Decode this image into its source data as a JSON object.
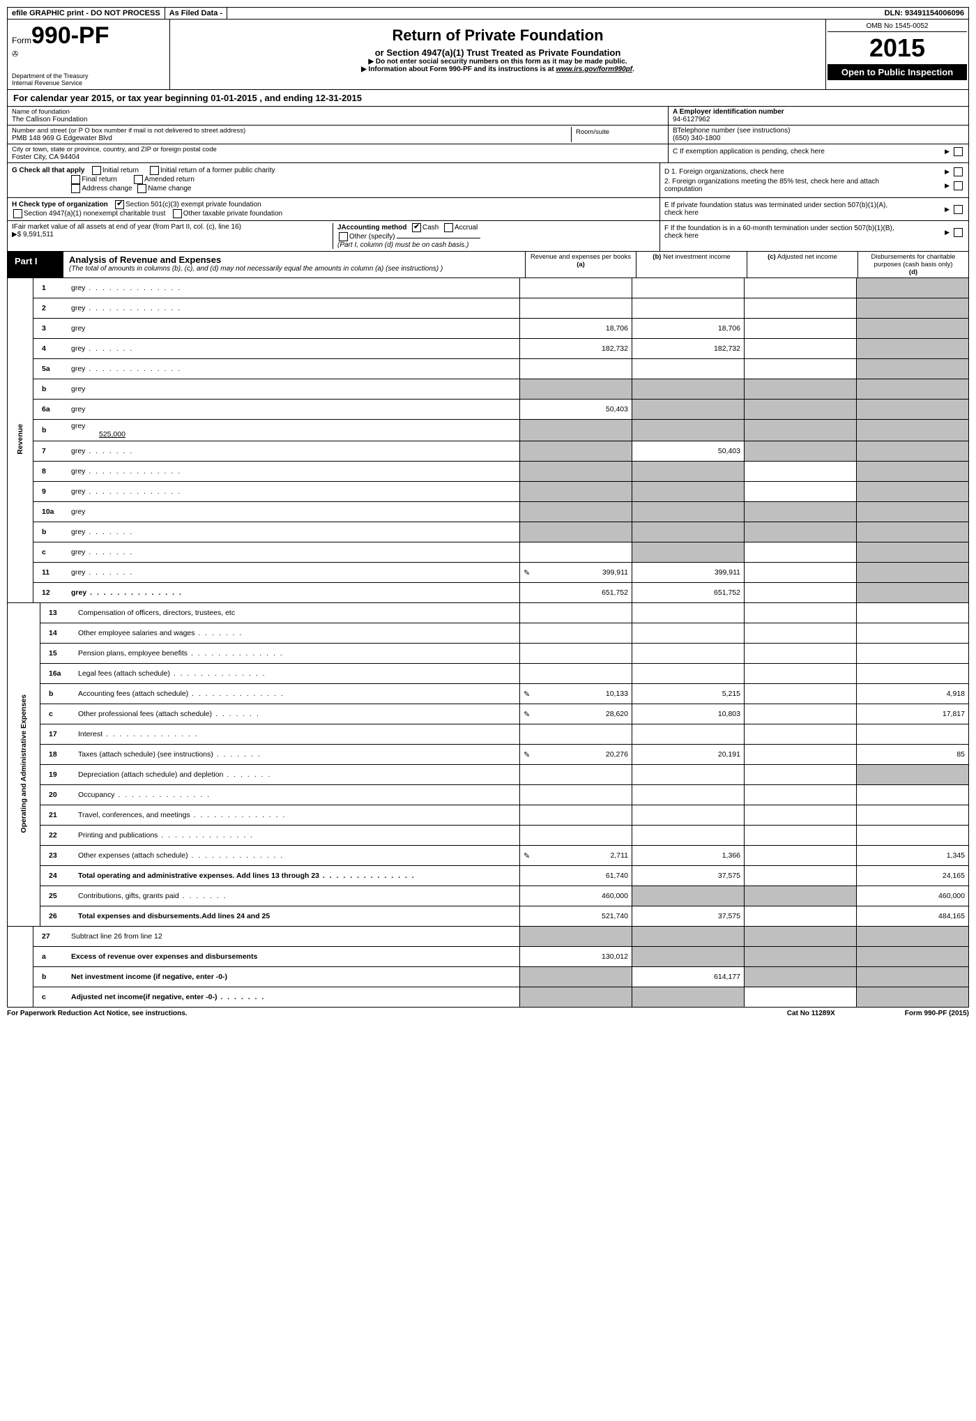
{
  "topbar": {
    "efile": "efile GRAPHIC print - DO NOT PROCESS",
    "asfiled": "As Filed Data -",
    "dln": "DLN: 93491154006096"
  },
  "header": {
    "form_prefix": "Form",
    "form_no": "990-PF",
    "dept1": "Department of the Treasury",
    "dept2": "Internal Revenue Service",
    "title": "Return of Private Foundation",
    "subtitle": "or Section 4947(a)(1) Trust Treated as Private Foundation",
    "note1": "▶ Do not enter social security numbers on this form as it may be made public.",
    "note2_a": "▶ Information about Form 990-PF and its instructions is at ",
    "note2_link": "www.irs.gov/form990pf",
    "note2_b": ".",
    "omb": "OMB No 1545-0052",
    "year": "2015",
    "open": "Open to Public Inspection"
  },
  "calyear": "For calendar year 2015, or tax year beginning 01-01-2015           , and ending 12-31-2015",
  "info": {
    "name_label": "Name of foundation",
    "name": "The Callison Foundation",
    "addr_label": "Number and street (or P O  box number if mail is not delivered to street address)",
    "room_label": "Room/suite",
    "addr": "PMB 148 969 G Edgewater Blvd",
    "city_label": "City or town, state or province, country, and ZIP or foreign postal code",
    "city": "Foster City, CA  94404",
    "a_label": "A Employer identification number",
    "a_val": "94-6127962",
    "b_label": "BTelephone number (see instructions)",
    "b_val": "(650) 340-1800",
    "c_label": "C  If exemption application is pending, check here"
  },
  "g": {
    "label": "G Check all that apply",
    "o1": "Initial return",
    "o2": "Initial return of a former public charity",
    "o3": "Final return",
    "o4": "Amended return",
    "o5": "Address change",
    "o6": "Name change"
  },
  "h": {
    "label": "H Check type of organization",
    "o1": "Section 501(c)(3) exempt private foundation",
    "o2": "Section 4947(a)(1) nonexempt charitable trust",
    "o3": "Other taxable private foundation"
  },
  "i": {
    "label": "IFair market value of all assets at end of year (from Part II, col. (c), line 16)",
    "val": "▶$  9,591,511"
  },
  "j": {
    "label": "JAccounting method",
    "o1": "Cash",
    "o2": "Accrual",
    "o3": "Other (specify)",
    "note": "(Part I, column (d) must be on cash basis.)"
  },
  "right_defs": {
    "d1": "D 1.  Foreign organizations, check here",
    "d2": "2.  Foreign organizations meeting the 85% test, check here and attach computation",
    "e": "E  If private foundation status was terminated under section 507(b)(1)(A), check here",
    "f": "F  If the foundation is in a 60-month termination under section 507(b)(1)(B), check here"
  },
  "part1": {
    "label": "Part I",
    "title": "Analysis of Revenue and Expenses",
    "note": "(The total of amounts in columns (b), (c), and (d) may not necessarily equal the amounts in column (a) (see instructions) )",
    "col_a": "Revenue and expenses per books",
    "col_a_pre": "(a)",
    "col_b": "Net investment income",
    "col_b_pre": "(b)",
    "col_c": "Adjusted net income",
    "col_c_pre": "(c)",
    "col_d": "Disbursements for charitable purposes (cash basis only)",
    "col_d_pre": "(d)"
  },
  "sections": {
    "revenue": "Revenue",
    "expenses": "Operating and Administrative Expenses"
  },
  "rows": [
    {
      "n": "1",
      "d": "grey",
      "dots": true,
      "a": "",
      "b": "",
      "c": ""
    },
    {
      "n": "2",
      "d": "grey",
      "dots": true,
      "a": "",
      "b": "",
      "c": "",
      "bold_not": true
    },
    {
      "n": "3",
      "d": "grey",
      "a": "18,706",
      "b": "18,706",
      "c": ""
    },
    {
      "n": "4",
      "d": "grey",
      "dots": "s",
      "a": "182,732",
      "b": "182,732",
      "c": ""
    },
    {
      "n": "5a",
      "d": "grey",
      "dots": true,
      "a": "",
      "b": "",
      "c": ""
    },
    {
      "n": "b",
      "d": "grey",
      "a": "grey",
      "b": "grey",
      "c": "grey"
    },
    {
      "n": "6a",
      "d": "grey",
      "a": "50,403",
      "b": "grey",
      "c": "grey"
    },
    {
      "n": "b",
      "d": "grey",
      "sub": "525,000",
      "a": "grey",
      "b": "grey",
      "c": "grey"
    },
    {
      "n": "7",
      "d": "grey",
      "dots": "s",
      "a": "grey",
      "b": "50,403",
      "c": "grey"
    },
    {
      "n": "8",
      "d": "grey",
      "dots": true,
      "a": "grey",
      "b": "grey",
      "c": ""
    },
    {
      "n": "9",
      "d": "grey",
      "dots": true,
      "a": "grey",
      "b": "grey",
      "c": ""
    },
    {
      "n": "10a",
      "d": "grey",
      "a": "grey",
      "b": "grey",
      "c": "grey"
    },
    {
      "n": "b",
      "d": "grey",
      "dots": "s",
      "a": "grey",
      "b": "grey",
      "c": "grey"
    },
    {
      "n": "c",
      "d": "grey",
      "dots": "s",
      "a": "",
      "b": "grey",
      "c": ""
    },
    {
      "n": "11",
      "d": "grey",
      "dots": "s",
      "icon": true,
      "a": "399,911",
      "b": "399,911",
      "c": ""
    },
    {
      "n": "12",
      "d": "grey",
      "dots": true,
      "bold": true,
      "a": "651,752",
      "b": "651,752",
      "c": ""
    }
  ],
  "exp_rows": [
    {
      "n": "13",
      "d": "Compensation of officers, directors, trustees, etc",
      "a": "",
      "b": "",
      "c": "",
      "dd": ""
    },
    {
      "n": "14",
      "d": "Other employee salaries and wages",
      "dots": "s",
      "a": "",
      "b": "",
      "c": "",
      "dd": ""
    },
    {
      "n": "15",
      "d": "Pension plans, employee benefits",
      "dots": true,
      "a": "",
      "b": "",
      "c": "",
      "dd": ""
    },
    {
      "n": "16a",
      "d": "Legal fees (attach schedule)",
      "dots": true,
      "a": "",
      "b": "",
      "c": "",
      "dd": ""
    },
    {
      "n": "b",
      "d": "Accounting fees (attach schedule)",
      "dots": true,
      "icon": true,
      "a": "10,133",
      "b": "5,215",
      "c": "",
      "dd": "4,918"
    },
    {
      "n": "c",
      "d": "Other professional fees (attach schedule)",
      "dots": "s",
      "icon": true,
      "a": "28,620",
      "b": "10,803",
      "c": "",
      "dd": "17,817"
    },
    {
      "n": "17",
      "d": "Interest",
      "dots": true,
      "a": "",
      "b": "",
      "c": "",
      "dd": ""
    },
    {
      "n": "18",
      "d": "Taxes (attach schedule) (see instructions)",
      "dots": "s",
      "icon": true,
      "a": "20,276",
      "b": "20,191",
      "c": "",
      "dd": "85"
    },
    {
      "n": "19",
      "d": "Depreciation (attach schedule) and depletion",
      "dots": "s",
      "a": "",
      "b": "",
      "c": "",
      "dd": "grey"
    },
    {
      "n": "20",
      "d": "Occupancy",
      "dots": true,
      "a": "",
      "b": "",
      "c": "",
      "dd": ""
    },
    {
      "n": "21",
      "d": "Travel, conferences, and meetings",
      "dots": true,
      "a": "",
      "b": "",
      "c": "",
      "dd": ""
    },
    {
      "n": "22",
      "d": "Printing and publications",
      "dots": true,
      "a": "",
      "b": "",
      "c": "",
      "dd": ""
    },
    {
      "n": "23",
      "d": "Other expenses (attach schedule)",
      "dots": true,
      "icon": true,
      "a": "2,711",
      "b": "1,366",
      "c": "",
      "dd": "1,345"
    },
    {
      "n": "24",
      "d": "Total operating and administrative expenses. Add lines 13 through 23",
      "dots": true,
      "bold": true,
      "a": "61,740",
      "b": "37,575",
      "c": "",
      "dd": "24,165"
    },
    {
      "n": "25",
      "d": "Contributions, gifts, grants paid",
      "dots": "s",
      "a": "460,000",
      "b": "grey",
      "c": "grey",
      "dd": "460,000"
    },
    {
      "n": "26",
      "d": "Total expenses and disbursements.Add lines 24 and 25",
      "bold": true,
      "a": "521,740",
      "b": "37,575",
      "c": "",
      "dd": "484,165"
    }
  ],
  "bottom_rows": [
    {
      "n": "27",
      "d": "Subtract line 26 from line 12",
      "a": "grey",
      "b": "grey",
      "c": "grey",
      "dd": "grey"
    },
    {
      "n": "a",
      "d": "Excess of revenue over expenses and disbursements",
      "bold": true,
      "a": "130,012",
      "b": "grey",
      "c": "grey",
      "dd": "grey"
    },
    {
      "n": "b",
      "d": "Net investment income (if negative, enter -0-)",
      "bold": true,
      "a": "grey",
      "b": "614,177",
      "c": "grey",
      "dd": "grey"
    },
    {
      "n": "c",
      "d": "Adjusted net income(if negative, enter -0-)",
      "dots": "s",
      "bold": true,
      "a": "grey",
      "b": "grey",
      "c": "",
      "dd": "grey"
    }
  ],
  "footer": {
    "left": "For Paperwork Reduction Act Notice, see instructions.",
    "mid": "Cat No 11289X",
    "right": "Form 990-PF (2015)"
  },
  "colors": {
    "grey": "#bfbfbf",
    "black": "#000000",
    "white": "#ffffff"
  }
}
